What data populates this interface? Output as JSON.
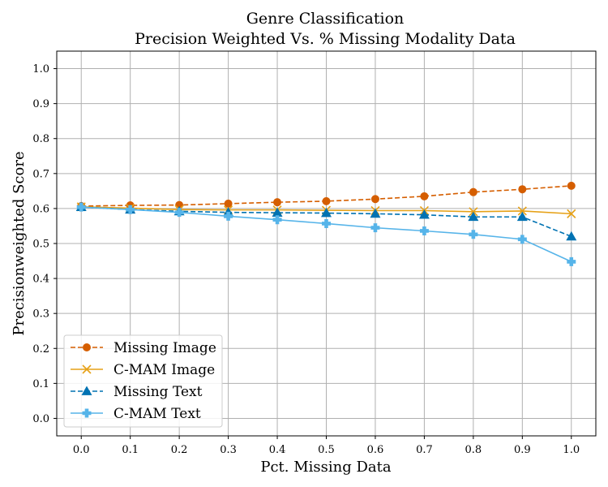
{
  "chart_data": {
    "type": "line",
    "title": "Genre Classification",
    "subtitle": "Precision Weighted Vs. % Missing Modality Data",
    "xlabel": "Pct. Missing Data",
    "ylabel": "Precisionweighted Score",
    "x": [
      0.0,
      0.1,
      0.2,
      0.3,
      0.4,
      0.5,
      0.6,
      0.7,
      0.8,
      0.9,
      1.0
    ],
    "xticks": [
      "0.0",
      "0.1",
      "0.2",
      "0.3",
      "0.4",
      "0.5",
      "0.6",
      "0.7",
      "0.8",
      "0.9",
      "1.0"
    ],
    "yticks": [
      "0.0",
      "0.1",
      "0.2",
      "0.3",
      "0.4",
      "0.5",
      "0.6",
      "0.7",
      "0.8",
      "0.9",
      "1.0"
    ],
    "xlim": [
      -0.05,
      1.05
    ],
    "ylim": [
      -0.05,
      1.05
    ],
    "grid": true,
    "legend_position": "lower-left",
    "series": [
      {
        "name": "Missing Image",
        "color": "#d55e00",
        "line": "dashed",
        "marker": "circle",
        "values": [
          0.607,
          0.609,
          0.61,
          0.614,
          0.618,
          0.621,
          0.627,
          0.635,
          0.647,
          0.655,
          0.665
        ]
      },
      {
        "name": "C-MAM Image",
        "color": "#e6a117",
        "line": "solid",
        "marker": "x",
        "values": [
          0.605,
          0.601,
          0.597,
          0.596,
          0.596,
          0.595,
          0.594,
          0.594,
          0.591,
          0.593,
          0.585
        ]
      },
      {
        "name": "Missing Text",
        "color": "#0072b2",
        "line": "dashed",
        "marker": "triangle",
        "values": [
          0.604,
          0.597,
          0.592,
          0.589,
          0.588,
          0.587,
          0.585,
          0.582,
          0.576,
          0.576,
          0.52
        ]
      },
      {
        "name": "C-MAM Text",
        "color": "#56b4e9",
        "line": "solid",
        "marker": "plus",
        "values": [
          0.604,
          0.597,
          0.589,
          0.578,
          0.568,
          0.557,
          0.545,
          0.536,
          0.526,
          0.512,
          0.448
        ]
      }
    ]
  }
}
